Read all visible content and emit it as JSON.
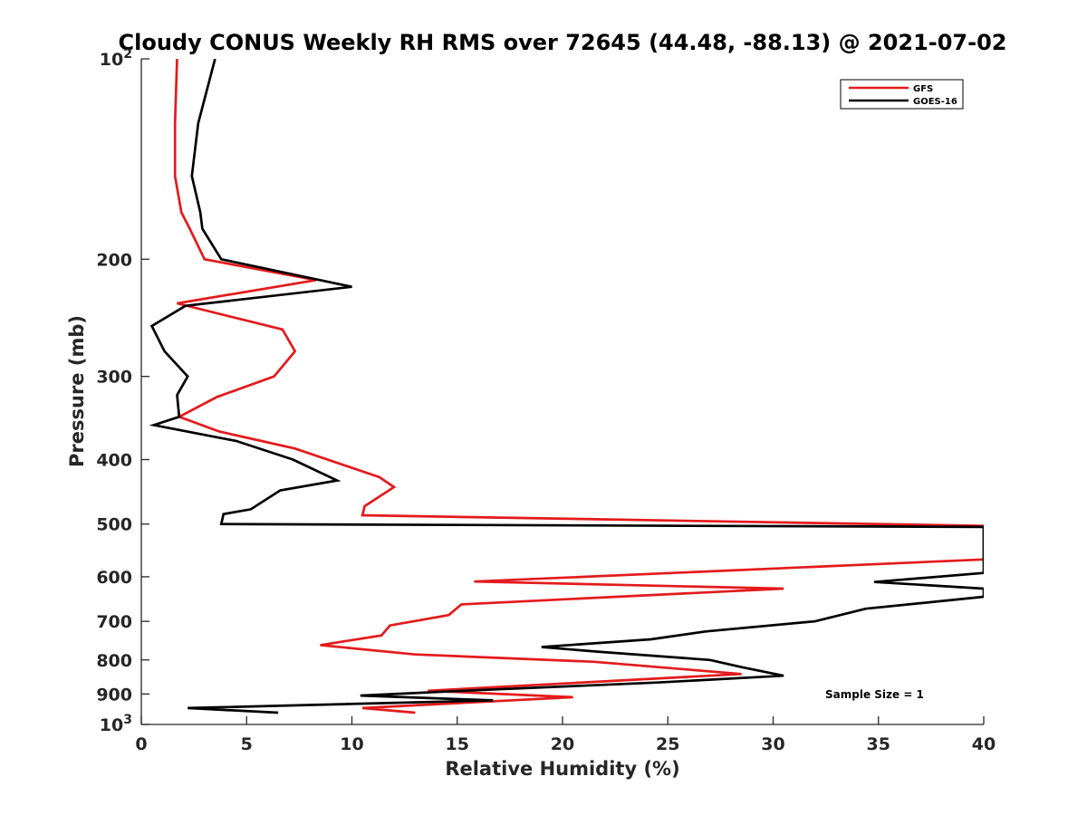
{
  "chart_data": {
    "type": "line",
    "title": "Cloudy CONUS Weekly RH RMS over 72645 (44.48, -88.13) @ 2021-07-02",
    "xlabel": "Relative Humidity (%)",
    "ylabel": "Pressure (mb)",
    "xlim": [
      0,
      40
    ],
    "ylim": [
      100,
      1000
    ],
    "y_scale": "log",
    "y_reversed": true,
    "grid": false,
    "legend_position": "top-right",
    "x_ticks": [
      "0",
      "5",
      "10",
      "15",
      "20",
      "25",
      "30",
      "35",
      "40"
    ],
    "y_ticks": [
      {
        "value": 100,
        "base": "10",
        "exp": "2"
      },
      {
        "value": 200,
        "label": "200"
      },
      {
        "value": 300,
        "label": "300"
      },
      {
        "value": 400,
        "label": "400"
      },
      {
        "value": 500,
        "label": "500"
      },
      {
        "value": 600,
        "label": "600"
      },
      {
        "value": 700,
        "label": "700"
      },
      {
        "value": 800,
        "label": "800"
      },
      {
        "value": 900,
        "label": "900"
      },
      {
        "value": 1000,
        "base": "10",
        "exp": "3"
      }
    ],
    "annotation": "Sample Size = 1",
    "series": [
      {
        "name": "GFS",
        "color": "#e41a1c",
        "points": [
          [
            1.7,
            100
          ],
          [
            1.6,
            125
          ],
          [
            1.6,
            150
          ],
          [
            1.9,
            170
          ],
          [
            2.3,
            180
          ],
          [
            3.0,
            200
          ],
          [
            8.3,
            215
          ],
          [
            1.7,
            233
          ],
          [
            6.7,
            255
          ],
          [
            7.3,
            275
          ],
          [
            6.3,
            300
          ],
          [
            3.6,
            322
          ],
          [
            1.8,
            345
          ],
          [
            3.7,
            363
          ],
          [
            7.3,
            385
          ],
          [
            11.3,
            425
          ],
          [
            12.0,
            440
          ],
          [
            10.6,
            470
          ],
          [
            10.5,
            485
          ],
          [
            40,
            503
          ],
          [
            40,
            565
          ],
          [
            15.8,
            610
          ],
          [
            30.5,
            625
          ],
          [
            15.2,
            660
          ],
          [
            14.6,
            685
          ],
          [
            11.8,
            710
          ],
          [
            11.4,
            735
          ],
          [
            8.5,
            760
          ],
          [
            13.0,
            785
          ],
          [
            21.5,
            805
          ],
          [
            28.5,
            840
          ],
          [
            13.6,
            890
          ],
          [
            20.5,
            910
          ],
          [
            10.5,
            945
          ],
          [
            13.0,
            960
          ]
        ]
      },
      {
        "name": "GOES-16",
        "color": "#000000",
        "points": [
          [
            3.5,
            100
          ],
          [
            2.7,
            125
          ],
          [
            2.4,
            150
          ],
          [
            2.8,
            170
          ],
          [
            2.9,
            180
          ],
          [
            3.8,
            200
          ],
          [
            10.0,
            220
          ],
          [
            2.1,
            235
          ],
          [
            0.5,
            252
          ],
          [
            1.1,
            275
          ],
          [
            2.2,
            300
          ],
          [
            1.7,
            320
          ],
          [
            1.8,
            345
          ],
          [
            0.6,
            355
          ],
          [
            4.5,
            375
          ],
          [
            7.2,
            400
          ],
          [
            9.3,
            430
          ],
          [
            6.6,
            445
          ],
          [
            5.2,
            475
          ],
          [
            3.9,
            483
          ],
          [
            3.8,
            500
          ],
          [
            40,
            505
          ],
          [
            40,
            592
          ],
          [
            34.8,
            611
          ],
          [
            40,
            625
          ],
          [
            40,
            643
          ],
          [
            34.4,
            670
          ],
          [
            32.0,
            700
          ],
          [
            26.8,
            725
          ],
          [
            24.2,
            745
          ],
          [
            19.0,
            765
          ],
          [
            21.8,
            778
          ],
          [
            27.0,
            800
          ],
          [
            28.5,
            820
          ],
          [
            30.5,
            845
          ],
          [
            24.5,
            865
          ],
          [
            15.3,
            890
          ],
          [
            10.4,
            905
          ],
          [
            16.7,
            920
          ],
          [
            2.2,
            945
          ],
          [
            6.5,
            960
          ]
        ]
      }
    ]
  }
}
